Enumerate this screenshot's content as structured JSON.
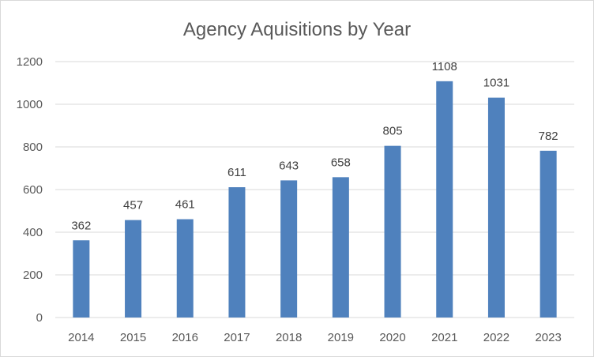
{
  "chart_data": {
    "type": "bar",
    "title": "Agency Aquisitions by Year",
    "categories": [
      "2014",
      "2015",
      "2016",
      "2017",
      "2018",
      "2019",
      "2020",
      "2021",
      "2022",
      "2023"
    ],
    "values": [
      362,
      457,
      461,
      611,
      643,
      658,
      805,
      1108,
      1031,
      782
    ],
    "ylim": [
      0,
      1200
    ],
    "yticks": [
      0,
      200,
      400,
      600,
      800,
      1000,
      1200
    ],
    "xlabel": "",
    "ylabel": "",
    "grid": true,
    "data_labels": true,
    "bar_color": "#4f81bd",
    "legend": "none"
  }
}
